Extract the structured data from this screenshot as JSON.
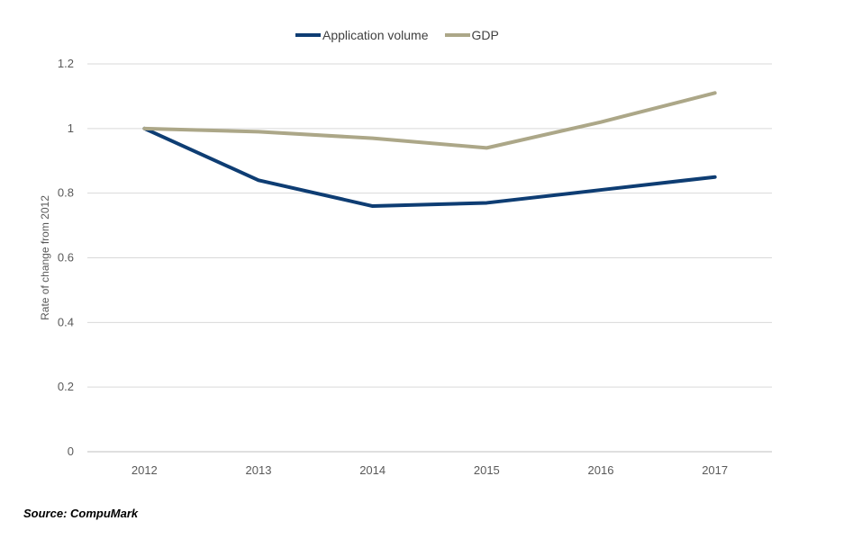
{
  "chart_data": {
    "type": "line",
    "categories": [
      "2012",
      "2013",
      "2014",
      "2015",
      "2016",
      "2017"
    ],
    "series": [
      {
        "name": "Application volume",
        "color": "#0e3d73",
        "values": [
          1.0,
          0.84,
          0.76,
          0.77,
          0.81,
          0.85
        ]
      },
      {
        "name": "GDP",
        "color": "#aca788",
        "values": [
          1.0,
          0.99,
          0.97,
          0.94,
          1.02,
          1.11
        ]
      }
    ],
    "title": "",
    "xlabel": "",
    "ylabel": "Rate of change from 2012",
    "ylim": [
      0,
      1.2
    ],
    "yticks": [
      "0",
      "0.2",
      "0.4",
      "0.6",
      "0.8",
      "1",
      "1.2"
    ],
    "grid": true,
    "legend_position": "top-center"
  },
  "source": "Source: CompuMark",
  "colors": {
    "gridline": "#d9d9d9",
    "axis": "#bfbfbf"
  }
}
